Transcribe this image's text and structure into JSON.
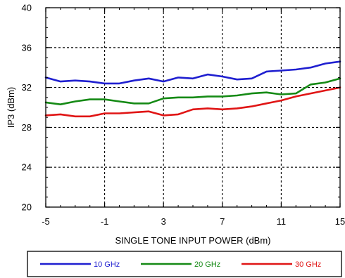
{
  "chart_data": {
    "type": "line",
    "xlabel": "SINGLE TONE INPUT POWER (dBm)",
    "ylabel": "IP3 (dBm)",
    "xlim": [
      -5,
      15
    ],
    "ylim": [
      20,
      40
    ],
    "x_ticks": [
      -5,
      -1,
      3,
      7,
      11,
      15
    ],
    "y_ticks": [
      20,
      24,
      28,
      32,
      36,
      40
    ],
    "grid": true,
    "grid_style": "dashed",
    "legend_position": "bottom",
    "x": [
      -5,
      -4,
      -3,
      -2,
      -1,
      0,
      1,
      2,
      3,
      4,
      5,
      6,
      7,
      8,
      9,
      10,
      11,
      12,
      13,
      14,
      15
    ],
    "series": [
      {
        "name": "10 GHz",
        "color": "#1f1fd0",
        "values": [
          33.0,
          32.6,
          32.7,
          32.6,
          32.4,
          32.4,
          32.7,
          32.9,
          32.6,
          33.0,
          32.9,
          33.3,
          33.1,
          32.8,
          32.9,
          33.6,
          33.7,
          33.8,
          34.0,
          34.4,
          34.6
        ]
      },
      {
        "name": "20 GHz",
        "color": "#158a15",
        "values": [
          30.5,
          30.3,
          30.6,
          30.8,
          30.8,
          30.6,
          30.4,
          30.4,
          30.9,
          31.0,
          31.0,
          31.1,
          31.1,
          31.2,
          31.4,
          31.5,
          31.3,
          31.4,
          32.3,
          32.5,
          32.9
        ]
      },
      {
        "name": "30 GHz",
        "color": "#e01515",
        "values": [
          29.2,
          29.3,
          29.1,
          29.1,
          29.4,
          29.4,
          29.5,
          29.6,
          29.2,
          29.3,
          29.8,
          29.9,
          29.8,
          29.9,
          30.1,
          30.4,
          30.7,
          31.1,
          31.4,
          31.7,
          32.0
        ]
      }
    ]
  }
}
